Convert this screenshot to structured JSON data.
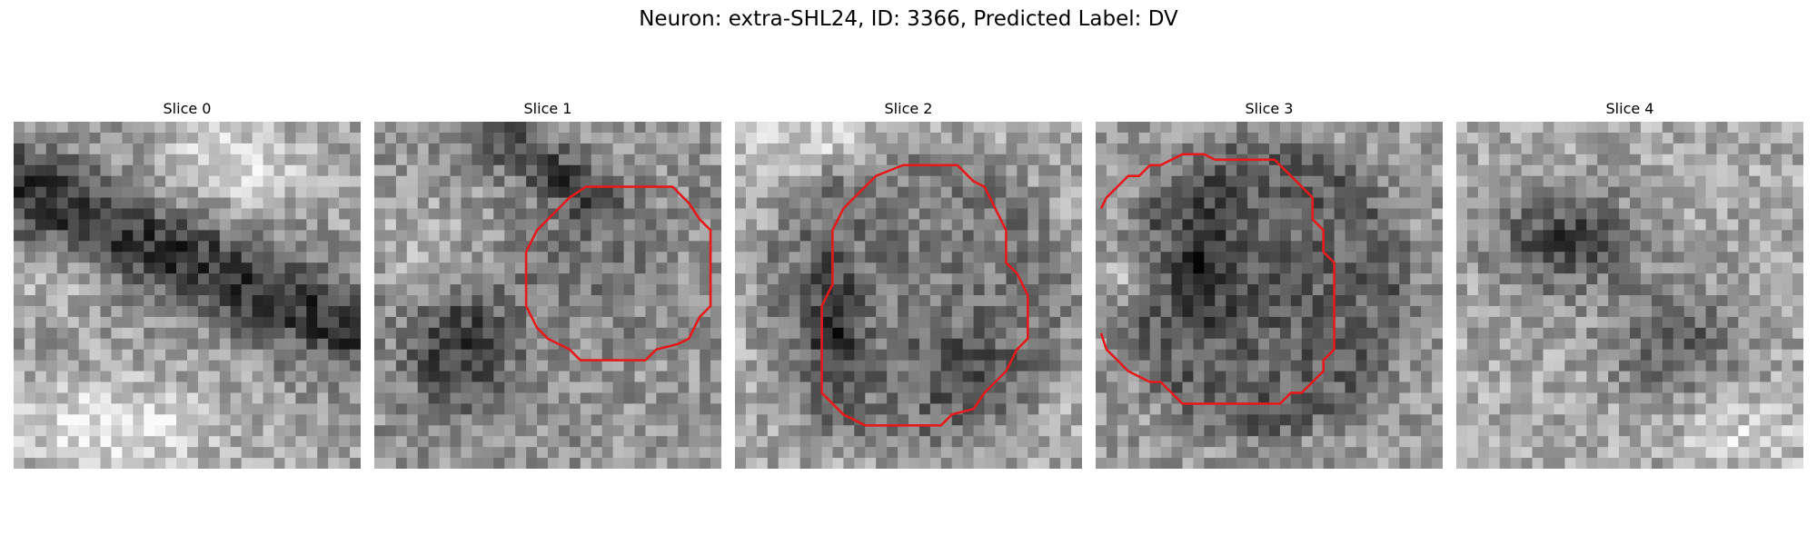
{
  "figure": {
    "title": "Neuron: extra-SHL24, ID: 3366, Predicted Label: DV",
    "contour_color": "#e41a1c",
    "panels": [
      {
        "title": "Slice 0",
        "has_contour": false
      },
      {
        "title": "Slice 1",
        "has_contour": true
      },
      {
        "title": "Slice 2",
        "has_contour": true
      },
      {
        "title": "Slice 3",
        "has_contour": true
      },
      {
        "title": "Slice 4",
        "has_contour": false
      }
    ]
  }
}
